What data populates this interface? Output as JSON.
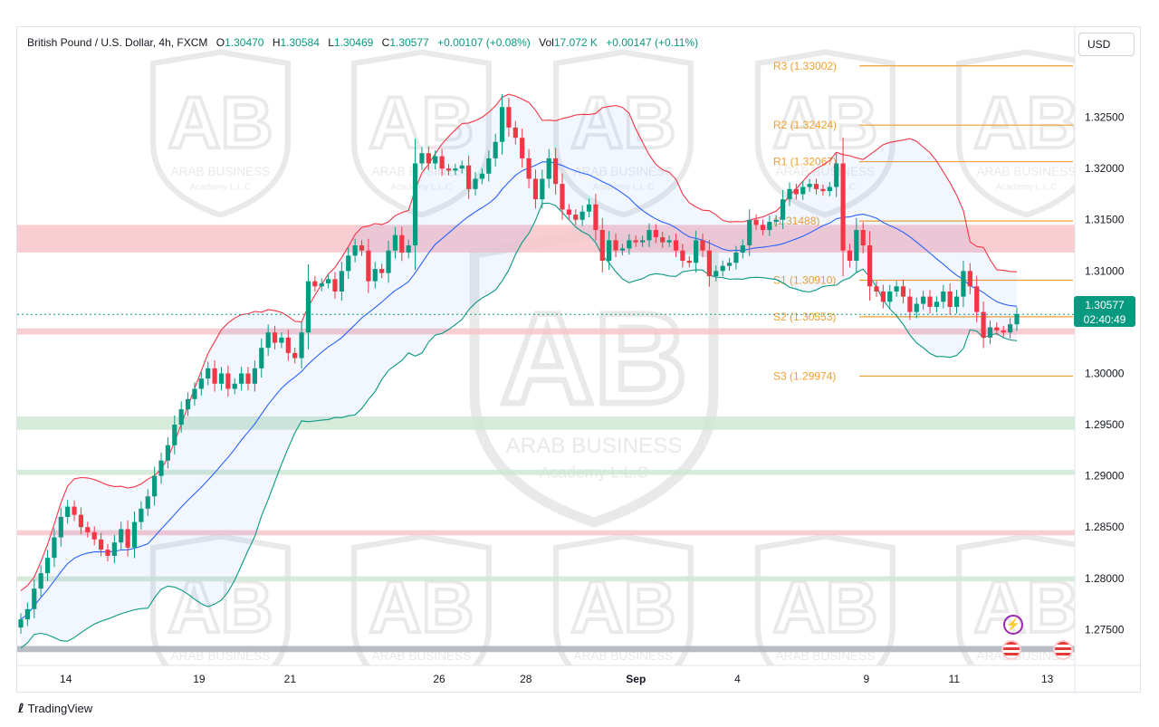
{
  "header": {
    "symbol": "British Pound / U.S. Dollar, 4h, FXCM",
    "open_label": "O",
    "open": "1.30470",
    "high_label": "H",
    "high": "1.30584",
    "low_label": "L",
    "low": "1.30469",
    "close_label": "C",
    "close": "1.30577",
    "change": "+0.00107 (+0.08%)",
    "vol_label": "Vol",
    "volume": "17.072 K",
    "vol_change": "+0.00147 (+0.11%)"
  },
  "currency_button": "USD",
  "price_tag": {
    "price": "1.30577",
    "countdown": "02:40:49"
  },
  "brand": {
    "logo": "TradingView",
    "watermark_text": "ARAB BUSINESS",
    "watermark_sub": "Academy L.L.C"
  },
  "icons": [
    "flash-event-icon",
    "us-flag-event-icon"
  ],
  "colors": {
    "up": "#089981",
    "down": "#f23645",
    "bb_basis": "#2962ff",
    "bb_upper": "#f23645",
    "bb_lower": "#089981",
    "pivot": "#f0a030",
    "zone_red": "#f7c6cb",
    "zone_green": "#cfe8d2"
  },
  "chart_data": {
    "type": "candlestick",
    "y_axis": {
      "min": 1.2715,
      "max": 1.3338,
      "ticks": [
        "1.27500",
        "1.28000",
        "1.28500",
        "1.29000",
        "1.29500",
        "1.30000",
        "1.30500",
        "1.31000",
        "1.31500",
        "1.32000",
        "1.32500"
      ]
    },
    "x_axis": {
      "ticks": [
        {
          "label": "14",
          "x": 0.046
        },
        {
          "label": "19",
          "x": 0.172
        },
        {
          "label": "21",
          "x": 0.258
        },
        {
          "label": "26",
          "x": 0.399
        },
        {
          "label": "28",
          "x": 0.481
        },
        {
          "label": "Sep",
          "x": 0.585
        },
        {
          "label": "4",
          "x": 0.681
        },
        {
          "label": "9",
          "x": 0.803
        },
        {
          "label": "11",
          "x": 0.886
        },
        {
          "label": "13",
          "x": 0.974
        }
      ]
    },
    "pivots": [
      {
        "label": "R3 (1.33002)",
        "value": 1.33002
      },
      {
        "label": "R2 (1.32424)",
        "value": 1.32424
      },
      {
        "label": "R1 (1.32067)",
        "value": 1.32067
      },
      {
        "label": "(1.31488)",
        "value": 1.31488
      },
      {
        "label": "S1 (1.30910)",
        "value": 1.3091
      },
      {
        "label": "S2 (1.30553)",
        "value": 1.30553
      },
      {
        "label": "S3 (1.29974)",
        "value": 1.29974
      }
    ],
    "zones": [
      {
        "color": "red",
        "from": 1.3118,
        "to": 1.3145
      },
      {
        "color": "red",
        "from": 1.3038,
        "to": 1.3044
      },
      {
        "color": "green",
        "from": 1.2945,
        "to": 1.2958
      },
      {
        "color": "green",
        "from": 1.2901,
        "to": 1.2906
      },
      {
        "color": "red",
        "from": 1.2842,
        "to": 1.2847
      },
      {
        "color": "green",
        "from": 1.2797,
        "to": 1.2802
      },
      {
        "color": "gray",
        "from": 1.2728,
        "to": 1.2734
      }
    ],
    "closes": [
      1.276,
      1.277,
      1.279,
      1.2805,
      1.282,
      1.284,
      1.286,
      1.287,
      1.2862,
      1.285,
      1.2845,
      1.2838,
      1.2828,
      1.2822,
      1.2835,
      1.2848,
      1.283,
      1.2855,
      1.2868,
      1.288,
      1.29,
      1.2915,
      1.293,
      1.295,
      1.2965,
      1.2975,
      1.2985,
      1.2995,
      1.3005,
      1.299,
      1.3,
      1.2985,
      1.299,
      1.3,
      1.299,
      1.3005,
      1.3025,
      1.304,
      1.303,
      1.3035,
      1.302,
      1.3015,
      1.304,
      1.309,
      1.3085,
      1.3088,
      1.3092,
      1.308,
      1.31,
      1.3115,
      1.3125,
      1.312,
      1.309,
      1.3102,
      1.3098,
      1.312,
      1.3135,
      1.3118,
      1.3125,
      1.3205,
      1.3215,
      1.3205,
      1.3212,
      1.32,
      1.3198,
      1.32,
      1.3203,
      1.318,
      1.319,
      1.3195,
      1.321,
      1.3226,
      1.326,
      1.324,
      1.323,
      1.321,
      1.319,
      1.317,
      1.319,
      1.321,
      1.3185,
      1.316,
      1.3155,
      1.315,
      1.3158,
      1.3165,
      1.314,
      1.311,
      1.313,
      1.312,
      1.3122,
      1.313,
      1.3128,
      1.313,
      1.314,
      1.3133,
      1.3128,
      1.313,
      1.312,
      1.311,
      1.3108,
      1.313,
      1.312,
      1.3095,
      1.31,
      1.3105,
      1.3108,
      1.3118,
      1.3125,
      1.315,
      1.3145,
      1.314,
      1.3148,
      1.315,
      1.317,
      1.318,
      1.3175,
      1.3182,
      1.3185,
      1.318,
      1.3178,
      1.3182,
      1.3205,
      1.312,
      1.311,
      1.314,
      1.3125,
      1.3085,
      1.308,
      1.307,
      1.308,
      1.3085,
      1.3075,
      1.306,
      1.3068,
      1.3075,
      1.3065,
      1.307,
      1.308,
      1.3065,
      1.3075,
      1.31,
      1.3085,
      1.306,
      1.3035,
      1.3045,
      1.3042,
      1.304,
      1.3048,
      1.3058
    ],
    "bollinger": {
      "length": 20,
      "mult": 2
    }
  }
}
